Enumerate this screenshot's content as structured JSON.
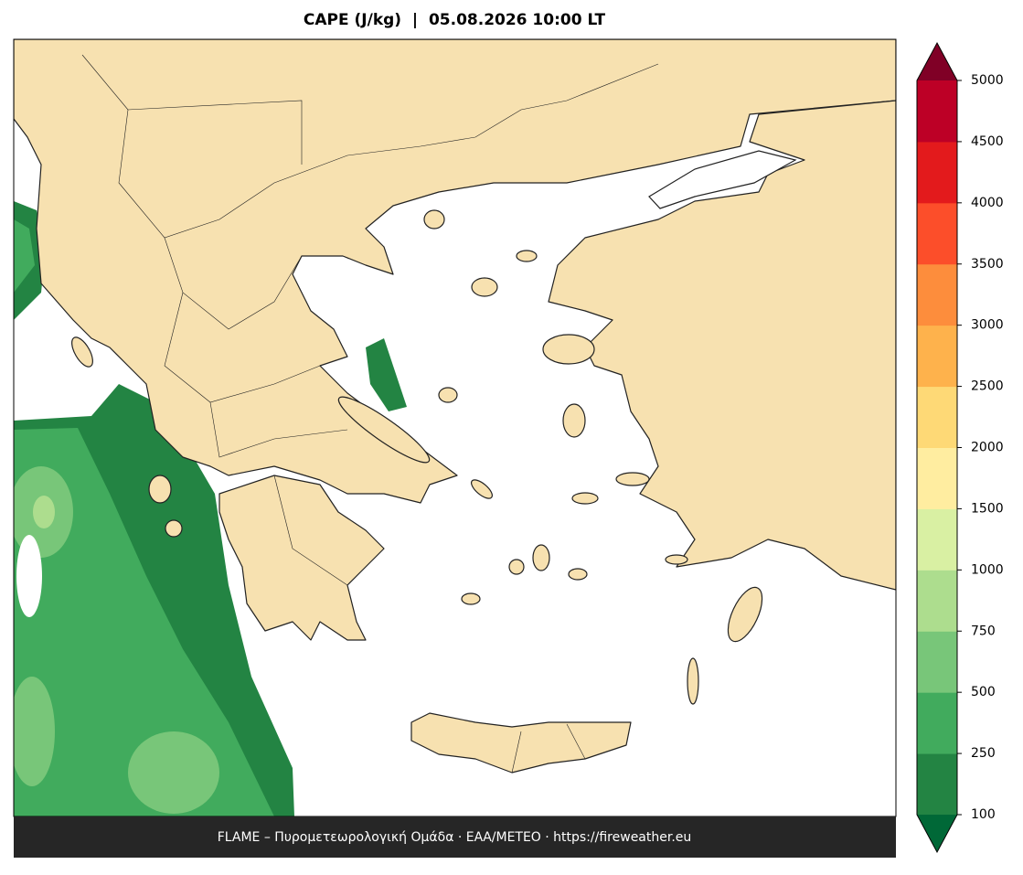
{
  "title": "CAPE (J/kg)  |  05.08.2026 10:00 LT",
  "colorbar": {
    "levels": [
      100,
      250,
      500,
      750,
      1000,
      1500,
      2000,
      2500,
      3000,
      3500,
      4000,
      4500,
      5000
    ],
    "colors": [
      "#238443",
      "#41ab5d",
      "#78c679",
      "#addd8e",
      "#d9f0a3",
      "#ffeda0",
      "#fed976",
      "#feb24c",
      "#fd8d3c",
      "#fc4e2a",
      "#e31a1c",
      "#bd0026"
    ],
    "under_color": "#006837",
    "over_color": "#800026"
  },
  "footer": "FLAME – Πυρομετεωρολογική Ομάδα · ΕΑΑ/METEO · https://fireweather.eu"
}
